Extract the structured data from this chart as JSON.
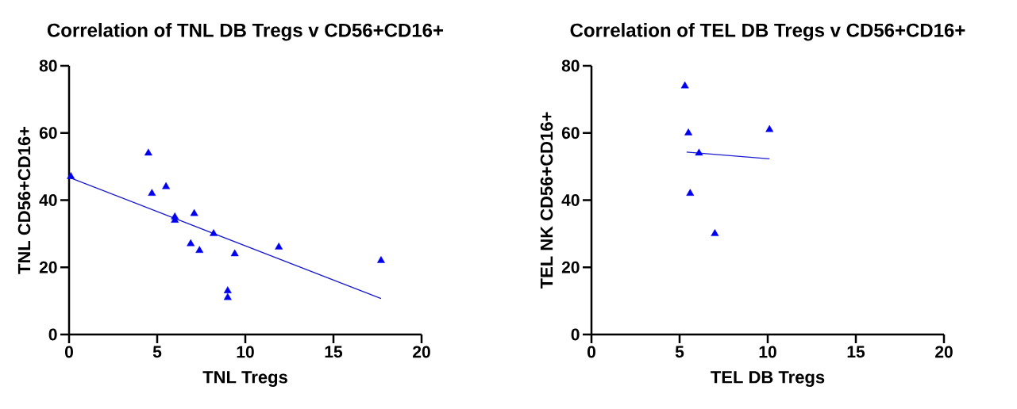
{
  "chart_data": [
    {
      "type": "scatter",
      "title": "Correlation of TNL DB Tregs v CD56+CD16+",
      "xlabel": "TNL Tregs",
      "ylabel": "TNL CD56+CD16+",
      "xlim": [
        0,
        20
      ],
      "ylim": [
        0,
        80
      ],
      "xticks": [
        0,
        5,
        10,
        15,
        20
      ],
      "yticks": [
        0,
        20,
        40,
        60,
        80
      ],
      "series": [
        {
          "marker": "triangle",
          "color": "#0000ee",
          "x": [
            0.1,
            4.5,
            4.7,
            5.5,
            6.0,
            6.0,
            7.1,
            6.9,
            7.4,
            8.2,
            9.4,
            9.0,
            9.0,
            11.9,
            17.7
          ],
          "values": [
            47,
            54,
            42,
            44,
            35,
            34,
            36,
            27,
            25,
            30,
            24,
            13,
            11,
            26,
            22
          ]
        },
        {
          "type": "line",
          "color": "#1a1ad0",
          "x": [
            0.1,
            17.7
          ],
          "values": [
            46.6,
            10.7
          ]
        }
      ]
    },
    {
      "type": "scatter",
      "title": "Correlation of TEL DB Tregs v CD56+CD16+",
      "xlabel": "TEL DB Tregs",
      "ylabel": "TEL NK CD56+CD16+",
      "xlim": [
        0,
        20
      ],
      "ylim": [
        0,
        80
      ],
      "xticks": [
        0,
        5,
        10,
        15,
        20
      ],
      "yticks": [
        0,
        20,
        40,
        60,
        80
      ],
      "series": [
        {
          "marker": "triangle",
          "color": "#0000ee",
          "x": [
            5.3,
            5.5,
            10.1,
            6.1,
            5.6,
            7.0
          ],
          "values": [
            74,
            60,
            61,
            54,
            42,
            30
          ]
        },
        {
          "type": "line",
          "color": "#1a1ad0",
          "x": [
            5.4,
            10.1
          ],
          "values": [
            54.3,
            52.3
          ]
        }
      ]
    }
  ]
}
